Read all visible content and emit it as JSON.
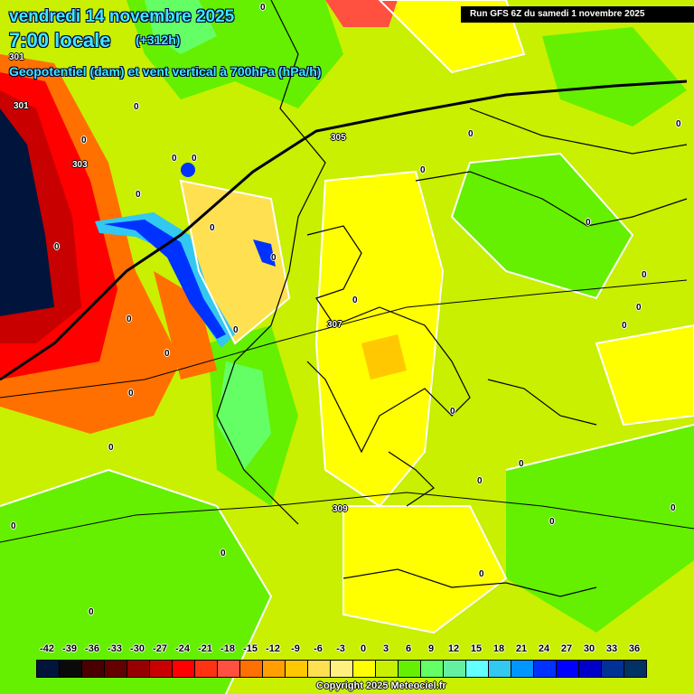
{
  "header": {
    "date": "vendredi 14 novembre 2025",
    "time": "7:00 locale",
    "lead": "(+312h)",
    "variable": "Geopotentiel (dam) et vent vertical à 700hPa (hPa/h)",
    "run": "Run GFS 6Z du samedi 1 novembre 2025"
  },
  "legend": {
    "ticks": [
      "-42",
      "-39",
      "-36",
      "-33",
      "-30",
      "-27",
      "-24",
      "-21",
      "-18",
      "-15",
      "-12",
      "-9",
      "-6",
      "-3",
      "0",
      "3",
      "6",
      "9",
      "12",
      "15",
      "18",
      "21",
      "24",
      "27",
      "30",
      "33",
      "36"
    ],
    "colors": [
      "#00143c",
      "#0a0a0a",
      "#4a0000",
      "#640000",
      "#960000",
      "#c80000",
      "#ff0000",
      "#ff3214",
      "#ff5040",
      "#ff7000",
      "#ffa000",
      "#ffc800",
      "#ffe050",
      "#fff080",
      "#ffff00",
      "#c8f000",
      "#64f000",
      "#64ff64",
      "#64f0a0",
      "#64ffff",
      "#32c8f0",
      "#0096ff",
      "#0032ff",
      "#0000ff",
      "#0000c8",
      "#003296",
      "#003264"
    ]
  },
  "contour_labels": [
    "301",
    "301",
    "303",
    "305",
    "307",
    "309",
    "0",
    "0",
    "0",
    "0",
    "0",
    "0",
    "0",
    "0",
    "0",
    "0",
    "0",
    "0",
    "0",
    "0",
    "0",
    "0",
    "0",
    "0",
    "0",
    "0",
    "0",
    "0",
    "0",
    "0",
    "0",
    "0",
    "0",
    "0",
    "0",
    "0",
    "0"
  ],
  "copyright": "Copyright 2025 Meteociel.fr"
}
